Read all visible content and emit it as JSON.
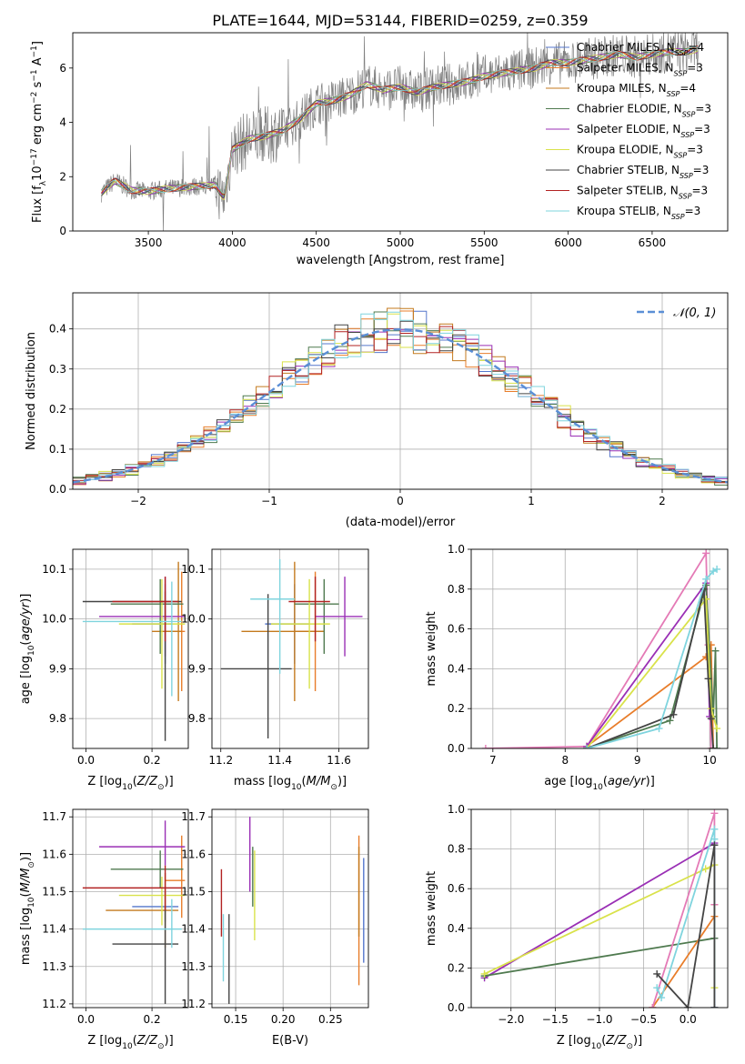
{
  "figure": {
    "title": "PLATE=1644, MJD=53144, FIBERID=0259, z=0.359"
  },
  "models": [
    {
      "name": "Chabrier MILES",
      "nssp": 4,
      "color": "#5577cc"
    },
    {
      "name": "Salpeter MILES",
      "nssp": 3,
      "color": "#e87d2a"
    },
    {
      "name": "Kroupa MILES",
      "nssp": 4,
      "color": "#c47a1e"
    },
    {
      "name": "Chabrier ELODIE",
      "nssp": 3,
      "color": "#4f7a4f"
    },
    {
      "name": "Salpeter ELODIE",
      "nssp": 3,
      "color": "#9a2fb5"
    },
    {
      "name": "Kroupa ELODIE",
      "nssp": 3,
      "color": "#d9e24a"
    },
    {
      "name": "Chabrier STELIB",
      "nssp": 3,
      "color": "#444444"
    },
    {
      "name": "Salpeter STELIB",
      "nssp": 3,
      "color": "#b22222"
    },
    {
      "name": "Kroupa STELIB",
      "nssp": 3,
      "color": "#7fd4de"
    }
  ],
  "chart_data": [
    {
      "id": "spectrum",
      "type": "line",
      "xlabel": "wavelength [Angstrom, rest frame]",
      "ylabel": "Flux [f_λ 10^-17 erg cm^-2 s^-1 A^-1]",
      "xlim": [
        3050,
        6950
      ],
      "ylim": [
        0,
        7.3
      ],
      "xticks": [
        3500,
        4000,
        4500,
        5000,
        5500,
        6000,
        6500
      ],
      "yticks": [
        0,
        2,
        4,
        6
      ],
      "grid": false,
      "legend": "top-right",
      "data_color": "#808080",
      "series": [
        {
          "x": [
            3220,
            3300,
            3400,
            3500,
            3600,
            3700,
            3800,
            3900,
            3950,
            4000,
            4100,
            4200,
            4300,
            4400,
            4500,
            4600,
            4700,
            4800,
            4900,
            5000,
            5100,
            5200,
            5300,
            5400,
            5500,
            5600,
            5700,
            5800,
            5900,
            6000,
            6100,
            6200,
            6300,
            6400,
            6500,
            6600,
            6700,
            6780
          ],
          "y": [
            1.4,
            1.85,
            1.5,
            1.45,
            1.55,
            1.6,
            1.65,
            1.7,
            1.2,
            3.0,
            3.4,
            3.5,
            3.7,
            4.1,
            4.7,
            4.8,
            5.0,
            5.4,
            5.2,
            5.3,
            5.1,
            5.3,
            5.4,
            5.5,
            5.7,
            5.8,
            5.9,
            6.0,
            6.2,
            6.2,
            6.3,
            6.4,
            6.5,
            6.4,
            6.5,
            6.6,
            6.6,
            6.7
          ]
        }
      ]
    },
    {
      "id": "residuals",
      "type": "line",
      "xlabel": "(data-model)/error",
      "ylabel": "Normed distribution",
      "xlim": [
        -2.5,
        2.5
      ],
      "ylim": [
        0,
        0.49
      ],
      "xticks": [
        -2,
        -1,
        0,
        1,
        2
      ],
      "yticks": [
        0.0,
        0.1,
        0.2,
        0.3,
        0.4
      ],
      "grid": true,
      "legend": "top-right",
      "normal_label": "𝒩(0, 1)",
      "normal_color": "#5b8fd6"
    },
    {
      "id": "age_vs_Z",
      "type": "scatter",
      "xlabel": "Z [log10(Z/Z⊙)]",
      "ylabel": "age  [log10(age/yr)]",
      "xlim": [
        -0.04,
        0.31
      ],
      "ylim": [
        9.74,
        10.14
      ],
      "xticks": [
        0.0,
        0.2
      ],
      "yticks": [
        9.8,
        9.9,
        10.0,
        10.1
      ],
      "grid": true,
      "points": [
        {
          "x": 0.24,
          "y": 9.99,
          "xerr": [
            0.1,
            0.02
          ],
          "yerr": [
            0.08,
            0.08
          ]
        },
        {
          "x": 0.29,
          "y": 9.975,
          "xerr": [
            0.05,
            0.01
          ],
          "yerr": [
            0.12,
            0.12
          ]
        },
        {
          "x": 0.28,
          "y": 9.975,
          "xerr": [
            0.08,
            0.01
          ],
          "yerr": [
            0.14,
            0.14
          ]
        },
        {
          "x": 0.225,
          "y": 10.03,
          "xerr": [
            0.15,
            0.07
          ],
          "yerr": [
            0.1,
            0.05
          ]
        },
        {
          "x": 0.24,
          "y": 10.005,
          "xerr": [
            0.2,
            0.06
          ],
          "yerr": [
            0.08,
            0.08
          ]
        },
        {
          "x": 0.23,
          "y": 9.99,
          "xerr": [
            0.13,
            0.07
          ],
          "yerr": [
            0.13,
            0.09
          ]
        },
        {
          "x": 0.24,
          "y": 10.035,
          "xerr": [
            0.25,
            0.05
          ],
          "yerr": [
            0.28,
            0.02
          ]
        },
        {
          "x": 0.24,
          "y": 10.035,
          "xerr": [
            0.16,
            0.04
          ],
          "yerr": [
            0.08,
            0.05
          ]
        },
        {
          "x": 0.26,
          "y": 9.995,
          "xerr": [
            0.27,
            0.03
          ],
          "yerr": [
            0.15,
            0.08
          ]
        }
      ]
    },
    {
      "id": "age_vs_mass",
      "type": "scatter",
      "xlabel": "mass [log10(M/M⊙)]",
      "ylabel": "",
      "xlim": [
        11.17,
        11.7
      ],
      "ylim": [
        9.74,
        10.14
      ],
      "xticks": [
        11.2,
        11.4,
        11.6
      ],
      "yticks": [
        9.8,
        9.9,
        10.0,
        10.1
      ],
      "grid": true,
      "points": [
        {
          "x": 11.45,
          "y": 9.99,
          "xerr": [
            0.1,
            0.05
          ],
          "yerr": [
            0.08,
            0.08
          ]
        },
        {
          "x": 11.52,
          "y": 9.975,
          "xerr": [
            0.07,
            0.03
          ],
          "yerr": [
            0.12,
            0.12
          ]
        },
        {
          "x": 11.45,
          "y": 9.975,
          "xerr": [
            0.18,
            0.1
          ],
          "yerr": [
            0.14,
            0.14
          ]
        },
        {
          "x": 11.55,
          "y": 10.03,
          "xerr": [
            0.1,
            0.05
          ],
          "yerr": [
            0.1,
            0.05
          ]
        },
        {
          "x": 11.62,
          "y": 10.005,
          "xerr": [
            0.1,
            0.06
          ],
          "yerr": [
            0.08,
            0.08
          ]
        },
        {
          "x": 11.5,
          "y": 9.99,
          "xerr": [
            0.13,
            0.07
          ],
          "yerr": [
            0.13,
            0.09
          ]
        },
        {
          "x": 11.36,
          "y": 9.9,
          "xerr": [
            0.16,
            0.08
          ],
          "yerr": [
            0.14,
            0.15
          ]
        },
        {
          "x": 11.52,
          "y": 10.035,
          "xerr": [
            0.09,
            0.05
          ],
          "yerr": [
            0.08,
            0.05
          ]
        },
        {
          "x": 11.4,
          "y": 10.04,
          "xerr": [
            0.1,
            0.05
          ],
          "yerr": [
            0.15,
            0.08
          ]
        }
      ]
    },
    {
      "id": "weight_vs_age",
      "type": "line",
      "xlabel": "age  [log10(age/yr)]",
      "ylabel": "mass weight",
      "xlim": [
        6.7,
        10.25
      ],
      "ylim": [
        0,
        1.0
      ],
      "xticks": [
        7,
        8,
        9,
        10
      ],
      "yticks": [
        0.0,
        0.2,
        0.4,
        0.6,
        0.8,
        1.0
      ],
      "grid": true,
      "lines": [
        {
          "x": [
            6.9,
            8.3,
            9.95,
            9.98,
            10.02
          ],
          "y": [
            0.0,
            0.01,
            0.98,
            0.52,
            0.0
          ],
          "color": "#e47ab6"
        },
        {
          "x": [
            8.3,
            9.95,
            10.02,
            10.05
          ],
          "y": [
            0.01,
            0.46,
            0.52,
            0.0
          ],
          "color": "#e87d2a"
        },
        {
          "x": [
            8.3,
            9.95,
            10.0
          ],
          "y": [
            0.01,
            0.83,
            0.16
          ],
          "color": "#9a2fb5"
        },
        {
          "x": [
            8.3,
            9.45,
            9.95,
            10.05,
            10.08,
            10.1
          ],
          "y": [
            0.0,
            0.14,
            0.82,
            0.16,
            0.49,
            0.0
          ],
          "color": "#4f7a4f"
        },
        {
          "x": [
            8.3,
            9.95,
            10.02,
            10.1
          ],
          "y": [
            0.0,
            0.75,
            0.2,
            0.1
          ],
          "color": "#d9e24a"
        },
        {
          "x": [
            8.3,
            9.5,
            9.92,
            9.98,
            10.02,
            10.05
          ],
          "y": [
            0.0,
            0.17,
            0.8,
            0.35,
            0.15,
            0.0
          ],
          "color": "#444444"
        },
        {
          "x": [
            8.3,
            9.3,
            9.95,
            10.05,
            10.1
          ],
          "y": [
            0.0,
            0.1,
            0.85,
            0.89,
            0.9
          ],
          "color": "#7fd4de"
        }
      ]
    },
    {
      "id": "mass_vs_Z",
      "type": "scatter",
      "xlabel": "Z [log10(Z/Z⊙)]",
      "ylabel": "mass [log10(M/M⊙)]",
      "xlim": [
        -0.04,
        0.31
      ],
      "ylim": [
        11.19,
        11.72
      ],
      "xticks": [
        0.0,
        0.2
      ],
      "yticks": [
        11.2,
        11.3,
        11.4,
        11.5,
        11.6,
        11.7
      ],
      "grid": true,
      "points": [
        {
          "x": 0.24,
          "y": 11.46,
          "xerr": [
            0.1,
            0.04
          ],
          "yerr": [
            0.04,
            0.04
          ]
        },
        {
          "x": 0.29,
          "y": 11.53,
          "xerr": [
            0.05,
            0.01
          ],
          "yerr": [
            0.1,
            0.12
          ]
        },
        {
          "x": 0.24,
          "y": 11.45,
          "xerr": [
            0.18,
            0.04
          ],
          "yerr": [
            0.1,
            0.1
          ]
        },
        {
          "x": 0.225,
          "y": 11.56,
          "xerr": [
            0.15,
            0.07
          ],
          "yerr": [
            0.05,
            0.05
          ]
        },
        {
          "x": 0.24,
          "y": 11.62,
          "xerr": [
            0.2,
            0.06
          ],
          "yerr": [
            0.05,
            0.07
          ]
        },
        {
          "x": 0.23,
          "y": 11.49,
          "xerr": [
            0.13,
            0.07
          ],
          "yerr": [
            0.08,
            0.05
          ]
        },
        {
          "x": 0.24,
          "y": 11.36,
          "xerr": [
            0.16,
            0.04
          ],
          "yerr": [
            0.16,
            0.1
          ]
        },
        {
          "x": 0.24,
          "y": 11.51,
          "xerr": [
            0.25,
            0.05
          ],
          "yerr": [
            0.06,
            0.06
          ]
        },
        {
          "x": 0.26,
          "y": 11.4,
          "xerr": [
            0.27,
            0.03
          ],
          "yerr": [
            0.05,
            0.08
          ]
        }
      ]
    },
    {
      "id": "mass_vs_EBV",
      "type": "scatter",
      "xlabel": "E(B-V)",
      "ylabel": "",
      "xlim": [
        0.125,
        0.29
      ],
      "ylim": [
        11.19,
        11.72
      ],
      "xticks": [
        0.15,
        0.2,
        0.25
      ],
      "yticks": [
        11.2,
        11.3,
        11.4,
        11.5,
        11.6,
        11.7
      ],
      "grid": true,
      "points": [
        {
          "x": 0.285,
          "y": 11.45,
          "xerr": [
            0,
            0
          ],
          "yerr": [
            0.14,
            0.14
          ]
        },
        {
          "x": 0.28,
          "y": 11.45,
          "xerr": [
            0,
            0
          ],
          "yerr": [
            0.2,
            0.2
          ]
        },
        {
          "x": 0.28,
          "y": 11.5,
          "xerr": [
            0,
            0
          ],
          "yerr": [
            0.12,
            0.12
          ]
        },
        {
          "x": 0.168,
          "y": 11.54,
          "xerr": [
            0,
            0
          ],
          "yerr": [
            0.08,
            0.08
          ]
        },
        {
          "x": 0.165,
          "y": 11.6,
          "xerr": [
            0,
            0
          ],
          "yerr": [
            0.1,
            0.1
          ]
        },
        {
          "x": 0.17,
          "y": 11.49,
          "xerr": [
            0,
            0
          ],
          "yerr": [
            0.12,
            0.12
          ]
        },
        {
          "x": 0.143,
          "y": 11.32,
          "xerr": [
            0,
            0
          ],
          "yerr": [
            0.12,
            0.12
          ]
        },
        {
          "x": 0.135,
          "y": 11.47,
          "xerr": [
            0,
            0
          ],
          "yerr": [
            0.09,
            0.09
          ]
        },
        {
          "x": 0.137,
          "y": 11.35,
          "xerr": [
            0,
            0
          ],
          "yerr": [
            0.09,
            0.09
          ]
        }
      ]
    },
    {
      "id": "weight_vs_Z",
      "type": "line",
      "xlabel": "Z [log10(Z/Z⊙)]",
      "ylabel": "mass weight",
      "xlim": [
        -2.45,
        0.45
      ],
      "ylim": [
        0,
        1.0
      ],
      "xticks": [
        -2.0,
        -1.5,
        -1.0,
        -0.5,
        0.0
      ],
      "yticks": [
        0.0,
        0.2,
        0.4,
        0.6,
        0.8,
        1.0
      ],
      "grid": true,
      "lines": [
        {
          "x": [
            -2.3,
            0.3,
            0.3,
            0.3
          ],
          "y": [
            0.15,
            0.83,
            0.35,
            0.0
          ],
          "color": "#9a2fb5"
        },
        {
          "x": [
            -2.3,
            0.3
          ],
          "y": [
            0.16,
            0.35
          ],
          "color": "#4f7a4f"
        },
        {
          "x": [
            -2.3,
            0.2,
            0.3,
            0.3
          ],
          "y": [
            0.17,
            0.7,
            0.72,
            0.1
          ],
          "color": "#d9e24a"
        },
        {
          "x": [
            -0.4,
            0.3,
            0.3
          ],
          "y": [
            0.0,
            0.46,
            0.52
          ],
          "color": "#e87d2a"
        },
        {
          "x": [
            -0.4,
            0.3,
            0.3
          ],
          "y": [
            0.0,
            0.98,
            0.52
          ],
          "color": "#e47ab6"
        },
        {
          "x": [
            -0.35,
            -0.3,
            0.3,
            0.3,
            0.3
          ],
          "y": [
            0.1,
            0.05,
            0.9,
            0.85,
            0.0
          ],
          "color": "#7fd4de"
        },
        {
          "x": [
            -0.35,
            0.0,
            0.3,
            0.3
          ],
          "y": [
            0.17,
            0.0,
            0.82,
            0.0
          ],
          "color": "#444444"
        }
      ]
    }
  ]
}
